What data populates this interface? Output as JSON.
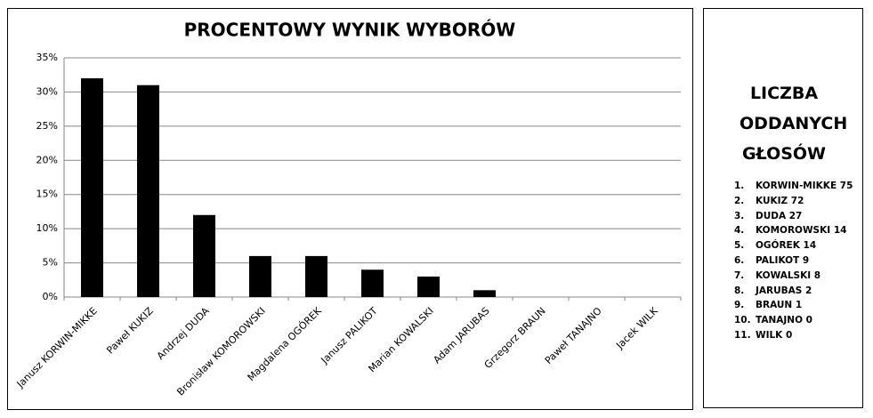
{
  "chart_data": {
    "type": "bar",
    "title": "PROCENTOWY WYNIK WYBORÓW",
    "categories": [
      "Janusz KORWIN-MIKKE",
      "Paweł KUKIZ",
      "Andrzej DUDA",
      "Bronisław KOMOROWSKI",
      "Magdalena OGÓREK",
      "Janusz PALIKOT",
      "Marian KOWALSKI",
      "Adam JARUBAS",
      "Grzegorz BRAUN",
      "Paweł TANAJNO",
      "Jacek WILK"
    ],
    "values": [
      32,
      31,
      12,
      6,
      6,
      4,
      3,
      1,
      0,
      0,
      0
    ],
    "color": "#000000",
    "ylim": [
      0,
      35
    ],
    "yticks": [
      {
        "value": 0,
        "label": "0%"
      },
      {
        "value": 5,
        "label": "5%"
      },
      {
        "value": 10,
        "label": "10%"
      },
      {
        "value": 15,
        "label": "15%"
      },
      {
        "value": 20,
        "label": "20%"
      },
      {
        "value": 25,
        "label": "25%"
      },
      {
        "value": 30,
        "label": "30%"
      },
      {
        "value": 35,
        "label": "35%"
      }
    ],
    "grid": true
  },
  "panel": {
    "title": "LICZBA ODDANYCH GŁOSÓW",
    "items": [
      {
        "number": "1.",
        "text": "KORWIN-MIKKE 75"
      },
      {
        "number": "2.",
        "text": "KUKIZ 72"
      },
      {
        "number": "3.",
        "text": "DUDA 27"
      },
      {
        "number": "4.",
        "text": "KOMOROWSKI 14"
      },
      {
        "number": "5.",
        "text": "OGÓREK 14"
      },
      {
        "number": "6.",
        "text": "PALIKOT 9"
      },
      {
        "number": "7.",
        "text": "KOWALSKI 8"
      },
      {
        "number": "8.",
        "text": "JARUBAS 2"
      },
      {
        "number": "9.",
        "text": "BRAUN 1"
      },
      {
        "number": "10.",
        "text": "TANAJNO 0"
      },
      {
        "number": "11.",
        "text": "WILK 0"
      }
    ]
  }
}
